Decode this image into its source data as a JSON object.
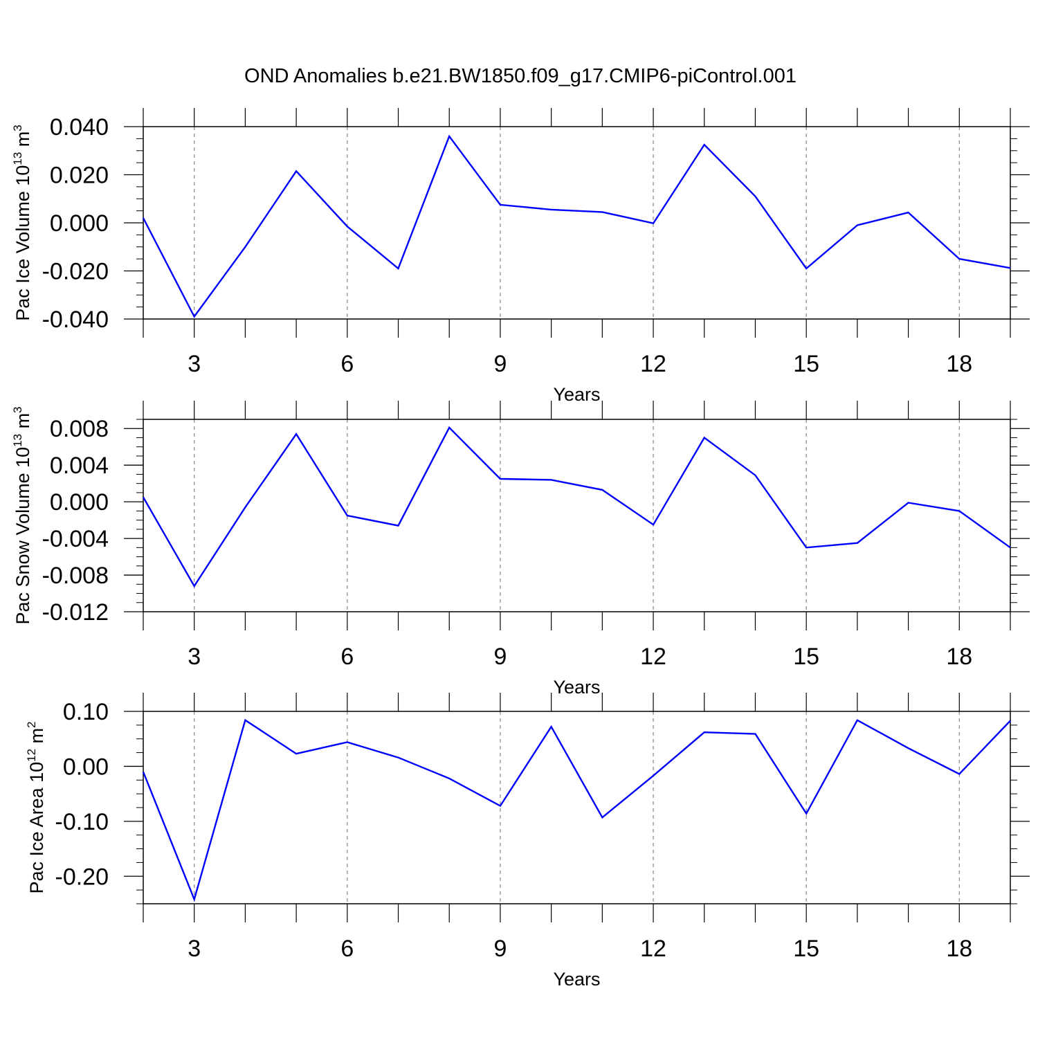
{
  "figure": {
    "title": "OND Anomalies b.e21.BW1850.f09_g17.CMIP6-piControl.001"
  },
  "chart_data": [
    {
      "type": "line",
      "xlabel": "Years",
      "ylabel": "Pac Ice Volume",
      "ylabel_units": {
        "pre": "10",
        "exp": "13",
        "mid": " m",
        "exp2": "3"
      },
      "x": [
        2,
        3,
        4,
        5,
        6,
        7,
        8,
        9,
        10,
        11,
        12,
        13,
        14,
        15,
        16,
        17,
        18,
        19
      ],
      "values": [
        0.002,
        -0.039,
        -0.01,
        0.0215,
        -0.0015,
        -0.019,
        0.036,
        0.0075,
        0.0055,
        0.0045,
        -0.0002,
        0.0325,
        0.011,
        -0.019,
        -0.001,
        0.0043,
        -0.015,
        -0.0188
      ],
      "xlim": [
        2,
        19
      ],
      "ylim": [
        -0.04,
        0.04
      ],
      "yticks": [
        -0.04,
        -0.02,
        0.0,
        0.02,
        0.04
      ],
      "ytick_labels": [
        "-0.040",
        "-0.020",
        "0.000",
        "0.020",
        "0.040"
      ],
      "xticks": [
        3,
        6,
        9,
        12,
        15,
        18
      ],
      "xtick_labels": [
        "3",
        "6",
        "9",
        "12",
        "15",
        "18"
      ],
      "line_color": "#0000ff"
    },
    {
      "type": "line",
      "xlabel": "Years",
      "ylabel": "Pac Snow Volume",
      "ylabel_units": {
        "pre": "10",
        "exp": "13",
        "mid": " m",
        "exp2": "3"
      },
      "x": [
        2,
        3,
        4,
        5,
        6,
        7,
        8,
        9,
        10,
        11,
        12,
        13,
        14,
        15,
        16,
        17,
        18,
        19
      ],
      "values": [
        0.0005,
        -0.0092,
        -0.0006,
        0.0074,
        -0.0015,
        -0.0026,
        0.0081,
        0.0025,
        0.0024,
        0.0013,
        -0.0025,
        0.007,
        0.0029,
        -0.005,
        -0.0045,
        -0.0001,
        -0.001,
        -0.005
      ],
      "xlim": [
        2,
        19
      ],
      "ylim": [
        -0.012,
        0.009
      ],
      "yticks": [
        -0.012,
        -0.008,
        -0.004,
        0.0,
        0.004,
        0.008
      ],
      "ytick_labels": [
        "-0.012",
        "-0.008",
        "-0.004",
        "0.000",
        "0.004",
        "0.008"
      ],
      "xticks": [
        3,
        6,
        9,
        12,
        15,
        18
      ],
      "xtick_labels": [
        "3",
        "6",
        "9",
        "12",
        "15",
        "18"
      ],
      "line_color": "#0000ff"
    },
    {
      "type": "line",
      "xlabel": "Years",
      "ylabel": "Pac Ice Area",
      "ylabel_units": {
        "pre": "10",
        "exp": "12",
        "mid": " m",
        "exp2": "2"
      },
      "x": [
        2,
        3,
        4,
        5,
        6,
        7,
        8,
        9,
        10,
        11,
        12,
        13,
        14,
        15,
        16,
        17,
        18,
        19
      ],
      "values": [
        -0.01,
        -0.242,
        0.084,
        0.023,
        0.044,
        0.016,
        -0.022,
        -0.072,
        0.072,
        -0.093,
        -0.017,
        0.062,
        0.059,
        -0.086,
        0.084,
        0.033,
        -0.014,
        0.083
      ],
      "xlim": [
        2,
        19
      ],
      "ylim": [
        -0.25,
        0.1
      ],
      "yticks": [
        -0.2,
        -0.1,
        0.0,
        0.1
      ],
      "ytick_labels": [
        "-0.20",
        "-0.10",
        "0.00",
        "0.10"
      ],
      "xticks": [
        3,
        6,
        9,
        12,
        15,
        18
      ],
      "xtick_labels": [
        "3",
        "6",
        "9",
        "12",
        "15",
        "18"
      ],
      "line_color": "#0000ff"
    }
  ]
}
